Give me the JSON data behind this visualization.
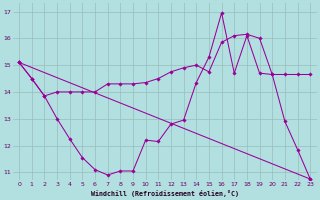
{
  "background_color": "#b2e0e0",
  "line_color": "#990099",
  "grid_color": "#99bbbb",
  "xlabel": "Windchill (Refroidissement éolien,°C)",
  "xlim": [
    -0.5,
    23.5
  ],
  "ylim": [
    10.7,
    17.3
  ],
  "yticks": [
    11,
    12,
    13,
    14,
    15,
    16,
    17
  ],
  "xticks": [
    0,
    1,
    2,
    3,
    4,
    5,
    6,
    7,
    8,
    9,
    10,
    11,
    12,
    13,
    14,
    15,
    16,
    17,
    18,
    19,
    20,
    21,
    22,
    23
  ],
  "series": [
    {
      "x": [
        0,
        1,
        2,
        3,
        4,
        5,
        6,
        7,
        8,
        9,
        10,
        11,
        12,
        13,
        14,
        15,
        16,
        17,
        18,
        19,
        20,
        21,
        22,
        23
      ],
      "y": [
        15.1,
        14.5,
        13.85,
        14.0,
        14.0,
        14.0,
        14.0,
        14.3,
        14.3,
        14.3,
        14.35,
        14.5,
        14.75,
        14.9,
        15.0,
        14.75,
        15.85,
        16.1,
        16.15,
        16.0,
        14.65,
        14.65,
        14.65,
        14.65
      ]
    },
    {
      "x": [
        0,
        1,
        2,
        3,
        4,
        5,
        6,
        7,
        8,
        9,
        10,
        11,
        12,
        13,
        14,
        15,
        16,
        17,
        18,
        19,
        20,
        21,
        22,
        23
      ],
      "y": [
        15.1,
        14.5,
        13.85,
        13.0,
        12.25,
        11.55,
        11.1,
        10.9,
        11.05,
        11.05,
        12.2,
        12.15,
        12.8,
        12.95,
        14.35,
        15.3,
        16.95,
        14.7,
        16.1,
        14.7,
        14.65,
        12.9,
        11.85,
        10.75
      ]
    },
    {
      "x": [
        0,
        23
      ],
      "y": [
        15.1,
        10.75
      ]
    }
  ]
}
